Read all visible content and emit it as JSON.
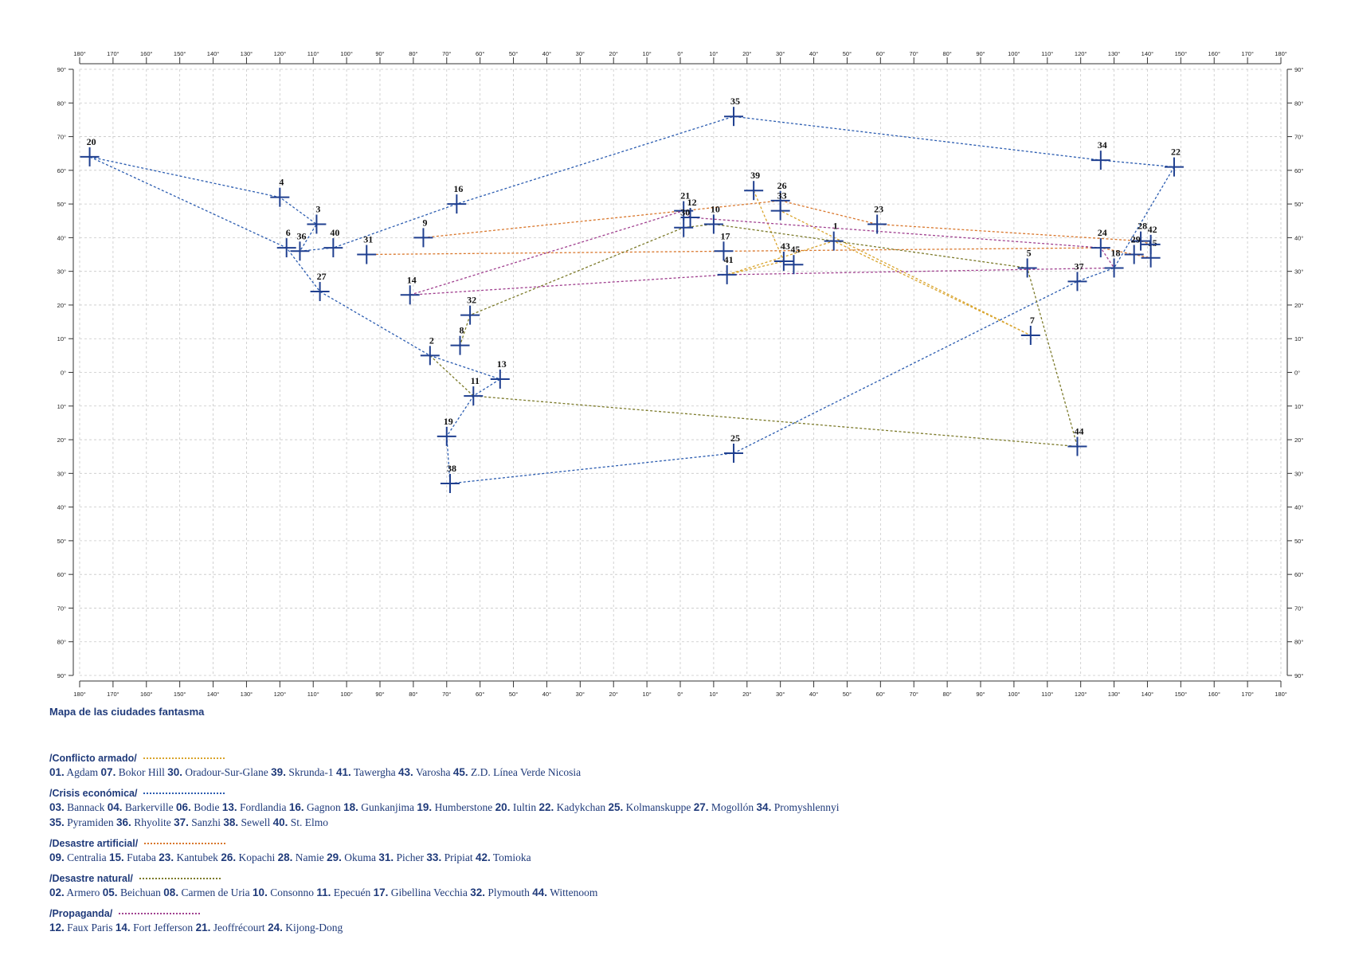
{
  "map": {
    "lon_range": [
      -180,
      180
    ],
    "lat_range": [
      -90,
      90
    ],
    "lon_ticks": [
      "180°",
      "170°",
      "160°",
      "150°",
      "140°",
      "130°",
      "120°",
      "110°",
      "100°",
      "90°",
      "80°",
      "70°",
      "60°",
      "50°",
      "40°",
      "30°",
      "20°",
      "10°",
      "0°",
      "10°",
      "20°",
      "30°",
      "40°",
      "50°",
      "60°",
      "70°",
      "80°",
      "90°",
      "100°",
      "110°",
      "120°",
      "130°",
      "140°",
      "150°",
      "160°",
      "170°",
      "180°"
    ],
    "lat_ticks": [
      "90°",
      "80°",
      "70°",
      "60°",
      "50°",
      "40°",
      "30°",
      "20°",
      "10°",
      "0°",
      "10°",
      "20°",
      "30°",
      "40°",
      "50°",
      "60°",
      "70°",
      "80°",
      "90°"
    ],
    "grid": true,
    "marker_color": "#1f3f8f",
    "places": [
      {
        "id": "1",
        "lon": 46,
        "lat": 39
      },
      {
        "id": "2",
        "lon": -75,
        "lat": 5
      },
      {
        "id": "3",
        "lon": -109,
        "lat": 44
      },
      {
        "id": "4",
        "lon": -120,
        "lat": 52
      },
      {
        "id": "5",
        "lon": 104,
        "lat": 31
      },
      {
        "id": "6",
        "lon": -118,
        "lat": 37
      },
      {
        "id": "7",
        "lon": 105,
        "lat": 11
      },
      {
        "id": "8",
        "lon": -66,
        "lat": 8
      },
      {
        "id": "9",
        "lon": -77,
        "lat": 40
      },
      {
        "id": "10",
        "lon": 10,
        "lat": 44
      },
      {
        "id": "11",
        "lon": -62,
        "lat": -7
      },
      {
        "id": "12",
        "lon": 3,
        "lat": 46
      },
      {
        "id": "13",
        "lon": -54,
        "lat": -2
      },
      {
        "id": "14",
        "lon": -81,
        "lat": 23
      },
      {
        "id": "15",
        "lon": 141,
        "lat": 34
      },
      {
        "id": "16",
        "lon": -67,
        "lat": 50
      },
      {
        "id": "17",
        "lon": 13,
        "lat": 36
      },
      {
        "id": "18",
        "lon": 130,
        "lat": 31
      },
      {
        "id": "19",
        "lon": -70,
        "lat": -19
      },
      {
        "id": "20",
        "lon": -177,
        "lat": 64
      },
      {
        "id": "21",
        "lon": 1,
        "lat": 48
      },
      {
        "id": "22",
        "lon": 148,
        "lat": 61
      },
      {
        "id": "23",
        "lon": 59,
        "lat": 44
      },
      {
        "id": "24",
        "lon": 126,
        "lat": 37
      },
      {
        "id": "25",
        "lon": 16,
        "lat": -24
      },
      {
        "id": "26",
        "lon": 30,
        "lat": 51
      },
      {
        "id": "27",
        "lon": -108,
        "lat": 24
      },
      {
        "id": "28",
        "lon": 138,
        "lat": 39
      },
      {
        "id": "29",
        "lon": 136,
        "lat": 35
      },
      {
        "id": "30",
        "lon": 1,
        "lat": 43
      },
      {
        "id": "31",
        "lon": -94,
        "lat": 35
      },
      {
        "id": "32",
        "lon": -63,
        "lat": 17
      },
      {
        "id": "33",
        "lon": 30,
        "lat": 48
      },
      {
        "id": "34",
        "lon": 126,
        "lat": 63
      },
      {
        "id": "35",
        "lon": 16,
        "lat": 76
      },
      {
        "id": "36",
        "lon": -114,
        "lat": 36
      },
      {
        "id": "37",
        "lon": 119,
        "lat": 27
      },
      {
        "id": "38",
        "lon": -69,
        "lat": -33
      },
      {
        "id": "39",
        "lon": 22,
        "lat": 54
      },
      {
        "id": "40",
        "lon": -104,
        "lat": 37
      },
      {
        "id": "41",
        "lon": 14,
        "lat": 29
      },
      {
        "id": "42",
        "lon": 141,
        "lat": 38
      },
      {
        "id": "43",
        "lon": 31,
        "lat": 33
      },
      {
        "id": "44",
        "lon": 119,
        "lat": -22
      },
      {
        "id": "45",
        "lon": 34,
        "lat": 32
      }
    ],
    "routes": [
      {
        "category": "conflicto",
        "color": "#d9a42c",
        "path": [
          "39",
          "43",
          "41",
          "1",
          "7",
          "33",
          "26"
        ]
      },
      {
        "category": "crisis",
        "color": "#2b5cb0",
        "path": [
          "20",
          "4",
          "3",
          "36",
          "40",
          "16",
          "35",
          "34",
          "22",
          "18",
          "37",
          "25",
          "38",
          "19",
          "11",
          "13",
          "2",
          "27",
          "6",
          "20"
        ]
      },
      {
        "category": "artificial",
        "color": "#d9772c",
        "path": [
          "9",
          "21",
          "26",
          "23",
          "28",
          "42",
          "15",
          "29",
          "24",
          "31"
        ]
      },
      {
        "category": "natural",
        "color": "#7c7a2a",
        "path": [
          "2",
          "11",
          "44",
          "5",
          "10",
          "30",
          "32",
          "8"
        ]
      },
      {
        "category": "propaganda",
        "color": "#a0408f",
        "path": [
          "14",
          "21",
          "12",
          "24",
          "18",
          "41",
          "14"
        ]
      }
    ]
  },
  "legend": {
    "title": "Mapa de las ciudades fantasma",
    "categories": [
      {
        "name": "/Conflicto armado/",
        "color": "#d9a42c",
        "items": [
          {
            "n": "01.",
            "label": "Agdam"
          },
          {
            "n": "07.",
            "label": "Bokor Hill"
          },
          {
            "n": "30.",
            "label": "Oradour-Sur-Glane"
          },
          {
            "n": "39.",
            "label": "Skrunda-1"
          },
          {
            "n": "41.",
            "label": "Tawergha"
          },
          {
            "n": "43.",
            "label": "Varosha"
          },
          {
            "n": "45.",
            "label": "Z.D. Línea Verde Nicosia"
          }
        ]
      },
      {
        "name": "/Crisis económica/",
        "color": "#2b5cb0",
        "items": [
          {
            "n": "03.",
            "label": "Bannack"
          },
          {
            "n": "04.",
            "label": "Barkerville"
          },
          {
            "n": "06.",
            "label": "Bodie"
          },
          {
            "n": "13.",
            "label": "Fordlandia"
          },
          {
            "n": "16.",
            "label": "Gagnon"
          },
          {
            "n": "18.",
            "label": "Gunkanjima"
          },
          {
            "n": "19.",
            "label": "Humberstone"
          },
          {
            "n": "20.",
            "label": "Iultin"
          },
          {
            "n": "22.",
            "label": "Kadykchan"
          },
          {
            "n": "25.",
            "label": "Kolmanskuppe"
          },
          {
            "n": "27.",
            "label": "Mogollón"
          },
          {
            "n": "34.",
            "label": "Promyshlennyi"
          },
          {
            "n": "35.",
            "label": "Pyramiden"
          },
          {
            "n": "36.",
            "label": "Rhyolite"
          },
          {
            "n": "37.",
            "label": "Sanzhi"
          },
          {
            "n": "38.",
            "label": "Sewell"
          },
          {
            "n": "40.",
            "label": "St. Elmo"
          }
        ]
      },
      {
        "name": "/Desastre artificial/",
        "color": "#d9772c",
        "items": [
          {
            "n": "09.",
            "label": "Centralia"
          },
          {
            "n": "15.",
            "label": "Futaba"
          },
          {
            "n": "23.",
            "label": "Kantubek"
          },
          {
            "n": "26.",
            "label": "Kopachi"
          },
          {
            "n": "28.",
            "label": "Namie"
          },
          {
            "n": "29.",
            "label": "Okuma"
          },
          {
            "n": "31.",
            "label": "Picher"
          },
          {
            "n": "33.",
            "label": "Pripiat"
          },
          {
            "n": "42.",
            "label": "Tomioka"
          }
        ]
      },
      {
        "name": "/Desastre natural/",
        "color": "#7c7a2a",
        "items": [
          {
            "n": "02.",
            "label": "Armero"
          },
          {
            "n": "05.",
            "label": "Beichuan"
          },
          {
            "n": "08.",
            "label": "Carmen de Uria"
          },
          {
            "n": "10.",
            "label": "Consonno"
          },
          {
            "n": "11.",
            "label": "Epecuén"
          },
          {
            "n": "17.",
            "label": "Gibellina Vecchia"
          },
          {
            "n": "32.",
            "label": "Plymouth"
          },
          {
            "n": "44.",
            "label": "Wittenoom"
          }
        ]
      },
      {
        "name": "/Propaganda/",
        "color": "#a0408f",
        "items": [
          {
            "n": "12.",
            "label": "Faux Paris"
          },
          {
            "n": "14.",
            "label": "Fort Jefferson"
          },
          {
            "n": "21.",
            "label": "Jeoffrécourt"
          },
          {
            "n": "24.",
            "label": "Kijong-Dong"
          }
        ]
      }
    ]
  }
}
